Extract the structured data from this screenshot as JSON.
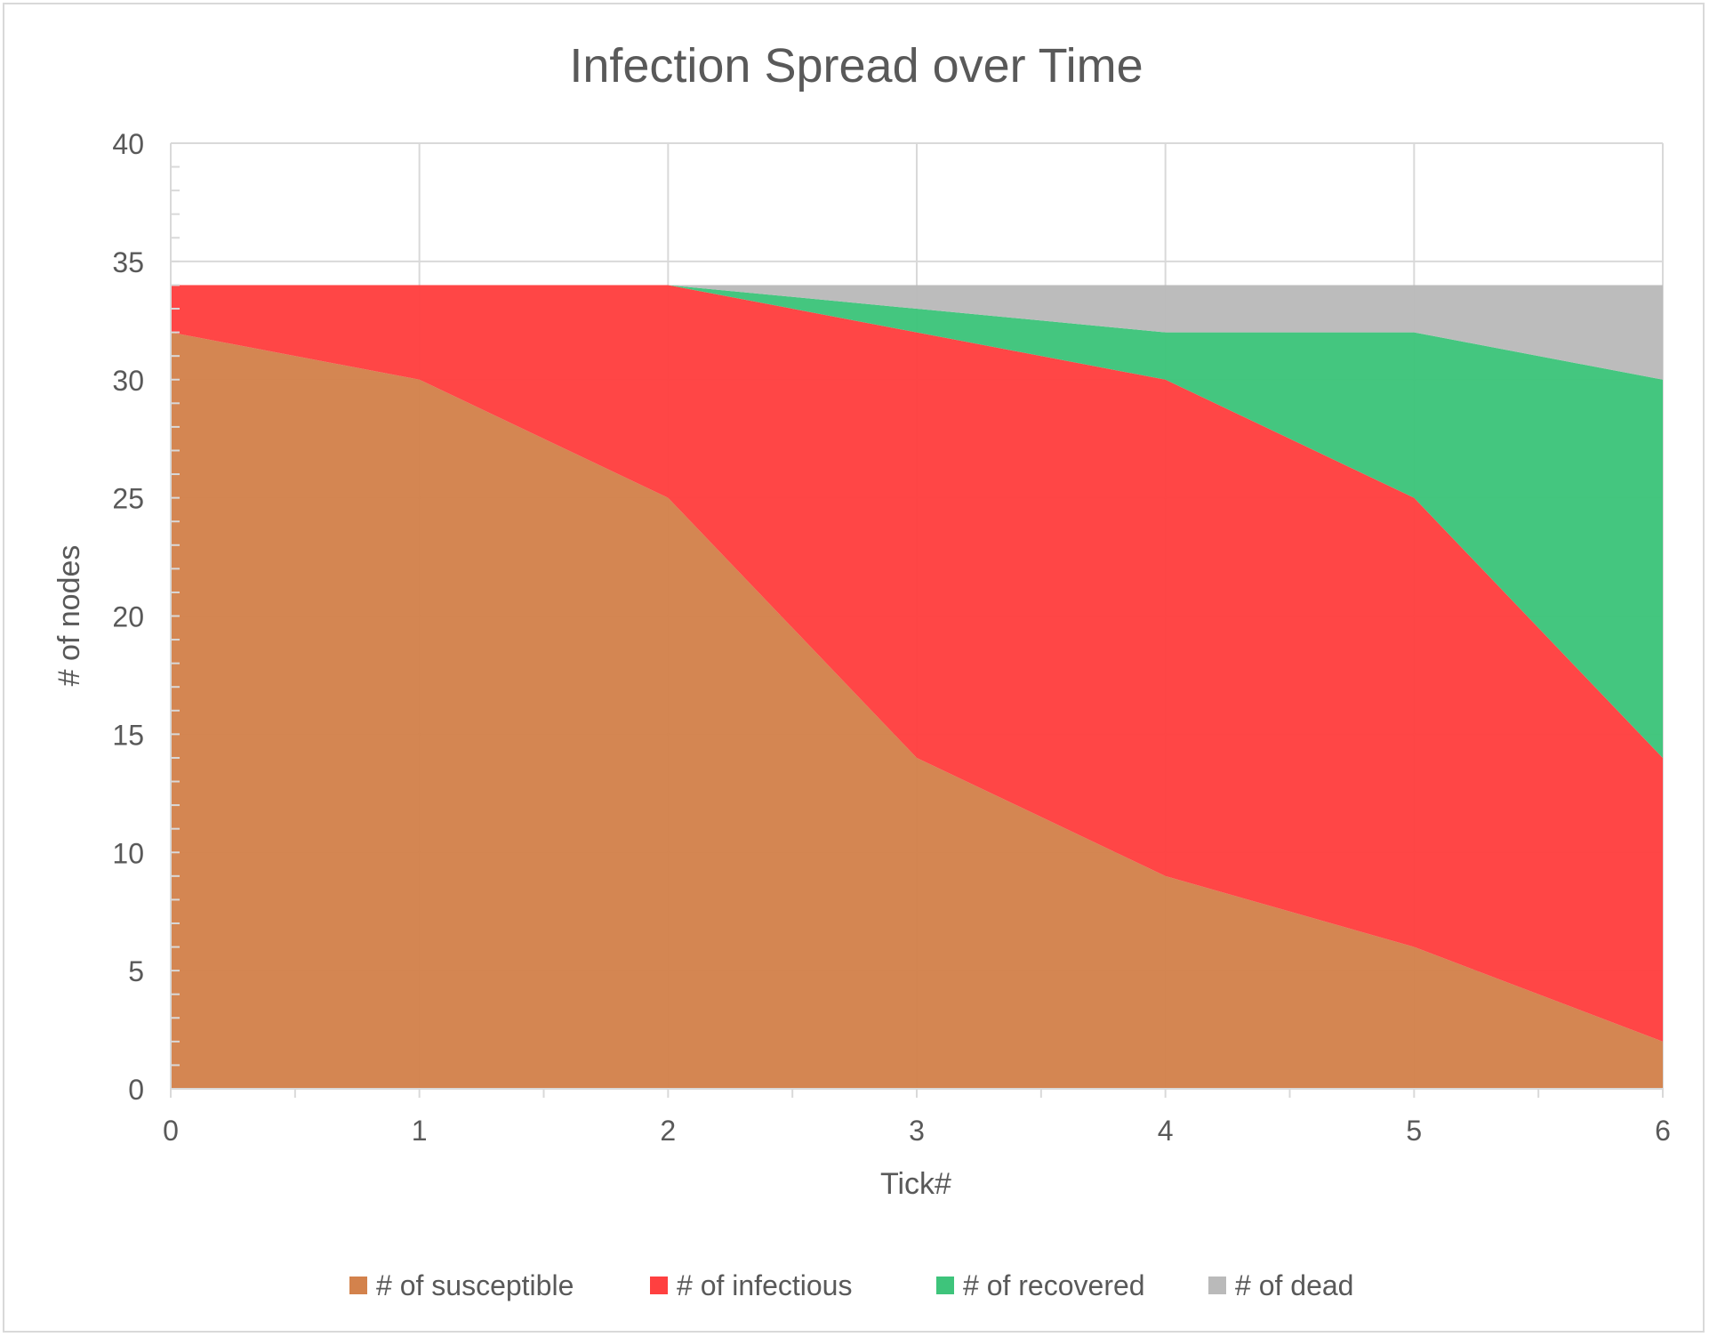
{
  "chart_data": {
    "type": "area",
    "stacked": true,
    "title": "Infection Spread over Time",
    "xlabel": "Tick#",
    "ylabel": "# of nodes",
    "x": [
      0,
      1,
      2,
      3,
      4,
      5,
      6
    ],
    "xlim": [
      0,
      6
    ],
    "ylim": [
      0,
      40
    ],
    "x_ticks": [
      "0",
      "1",
      "2",
      "3",
      "4",
      "5",
      "6"
    ],
    "y_ticks": [
      "0",
      "5",
      "10",
      "15",
      "20",
      "25",
      "30",
      "35",
      "40"
    ],
    "grid": true,
    "legend_position": "bottom",
    "series": [
      {
        "name": "# of susceptible",
        "values": [
          32,
          30,
          25,
          14,
          9,
          6,
          2
        ],
        "color": "#d3824c"
      },
      {
        "name": "# of infectious",
        "values": [
          2,
          4,
          9,
          18,
          21,
          19,
          12
        ],
        "color": "#ff4040"
      },
      {
        "name": "# of recovered",
        "values": [
          0,
          0,
          0,
          1,
          2,
          7,
          16
        ],
        "color": "#3ec47b"
      },
      {
        "name": "# of dead",
        "values": [
          0,
          0,
          0,
          1,
          2,
          2,
          4
        ],
        "color": "#bababa"
      }
    ]
  }
}
